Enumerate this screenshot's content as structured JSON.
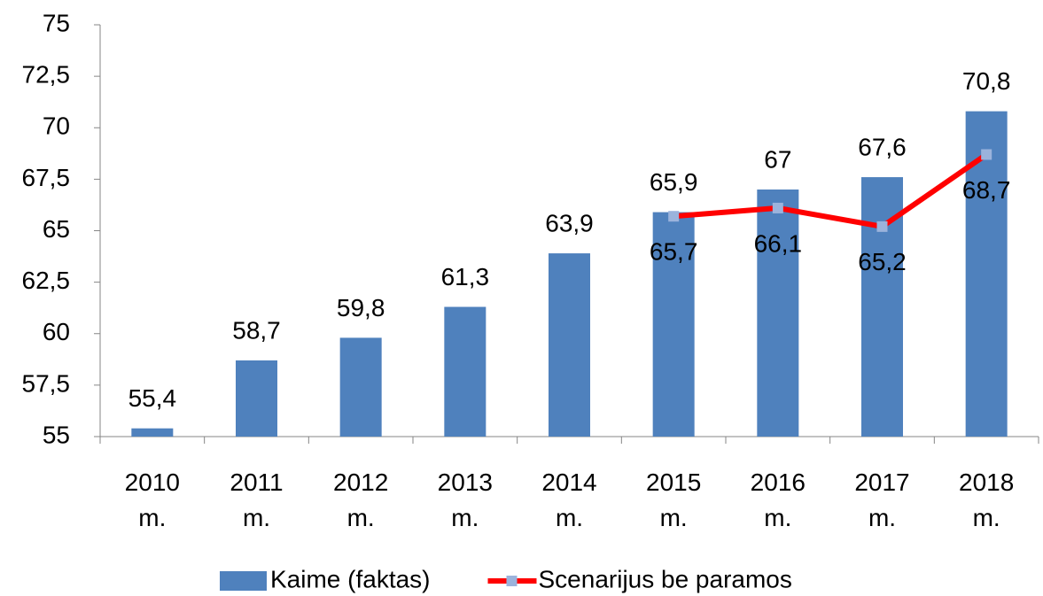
{
  "chart_data": {
    "type": "bar_line",
    "categories": [
      "2010 m.",
      "2011 m.",
      "2012 m.",
      "2013 m.",
      "2014 m.",
      "2015 m.",
      "2016 m.",
      "2017 m.",
      "2018 m."
    ],
    "series": [
      {
        "name": "Kaime (faktas)",
        "type": "bar",
        "color": "#4f81bd",
        "values": [
          55.4,
          58.7,
          59.8,
          61.3,
          63.9,
          65.9,
          67,
          67.6,
          70.8
        ],
        "value_labels": [
          "55,4",
          "58,7",
          "59,8",
          "61,3",
          "63,9",
          "65,9",
          "67",
          "67,6",
          "70,8"
        ]
      },
      {
        "name": "Scenarijus be paramos",
        "type": "line",
        "color": "#ff0000",
        "marker_color": "#9bb3dc",
        "values": [
          null,
          null,
          null,
          null,
          null,
          65.7,
          66.1,
          65.2,
          68.7
        ],
        "value_labels": [
          null,
          null,
          null,
          null,
          null,
          "65,7",
          "66,1",
          "65,2",
          "68,7"
        ]
      }
    ],
    "ylim": [
      55,
      75
    ],
    "yticks": [
      55,
      {
        "value": 57.5,
        "label": "57,5"
      },
      60,
      {
        "value": 62.5,
        "label": "62,5"
      },
      65,
      {
        "value": 67.5,
        "label": "67,5"
      },
      70,
      {
        "value": 72.5,
        "label": "72,5"
      },
      75
    ],
    "grid": false,
    "legend": "bottom"
  }
}
